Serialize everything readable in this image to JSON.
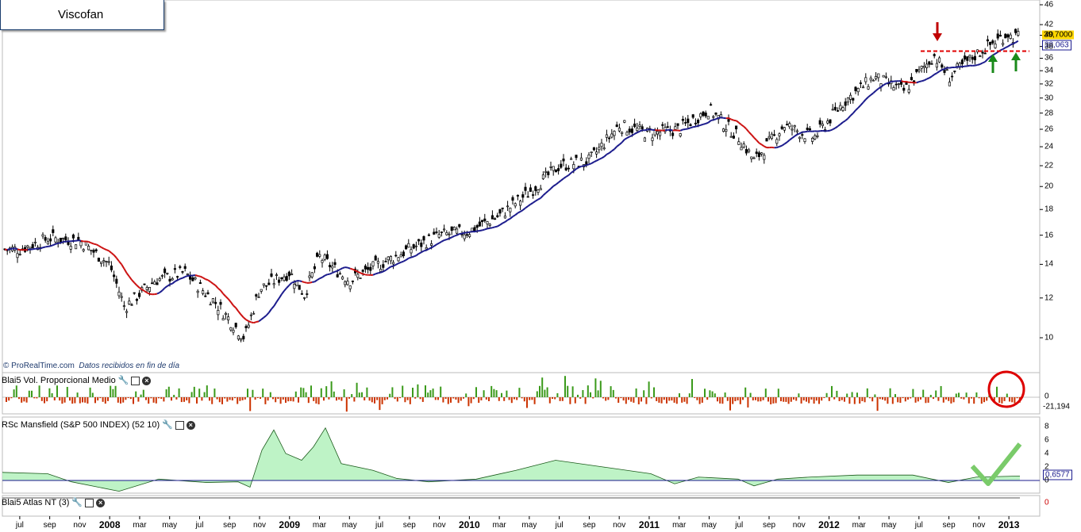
{
  "title": "Viscofan",
  "watermark": {
    "brand": "© ProRealTime.com",
    "note": "Datos recibidos en fin de día"
  },
  "price_tags": {
    "last": "39,7000",
    "ma": "38,063"
  },
  "indicators": {
    "volume": {
      "label": "Blai5 Vol. Proporcional Medio",
      "zero": "0",
      "value": "-21,194"
    },
    "rsc": {
      "label": "RSc Mansfield (S&P 500 INDEX) (52 10)",
      "value": "0,6577"
    },
    "atlas": {
      "label": "Blai5 Atlas NT (3)",
      "zero": "0"
    }
  },
  "icons": [
    "wrench-icon",
    "window-icon",
    "close-icon"
  ],
  "colors": {
    "candle": "#000000",
    "ma_up": "#1a1a8c",
    "ma_down": "#cc1111",
    "vol_up": "#3a9a1a",
    "vol_down": "#cc3300",
    "rsc_pos": "#aef0b8",
    "rsc_neg": "#f2b8c0",
    "arrow_red": "#c00000",
    "arrow_green": "#1a8a1a",
    "resistance": "#e00000"
  },
  "chart_data": {
    "type": "candlestick",
    "scale": "log",
    "ylim": [
      9,
      46
    ],
    "yticks": [
      46,
      42,
      40,
      38,
      36,
      34,
      32,
      30,
      28,
      26,
      24,
      22,
      20,
      18,
      16,
      14,
      12,
      10
    ],
    "x_tick_labels": [
      "jul",
      "sep",
      "nov",
      "2008",
      "mar",
      "may",
      "jul",
      "sep",
      "nov",
      "2009",
      "mar",
      "may",
      "jul",
      "sep",
      "nov",
      "2010",
      "mar",
      "may",
      "jul",
      "sep",
      "nov",
      "2011",
      "mar",
      "may",
      "jul",
      "sep",
      "nov",
      "2012",
      "mar",
      "may",
      "jul",
      "sep",
      "nov",
      "2013"
    ],
    "price_path": [
      [
        "2007-07",
        15.0
      ],
      [
        "2007-09",
        15.8
      ],
      [
        "2007-11",
        15.6
      ],
      [
        "2008-01",
        14.0
      ],
      [
        "2008-02",
        11.5
      ],
      [
        "2008-04",
        13.0
      ],
      [
        "2008-06",
        13.5
      ],
      [
        "2008-08",
        11.8
      ],
      [
        "2008-10",
        10.0
      ],
      [
        "2008-11",
        12.5
      ],
      [
        "2009-01",
        13.5
      ],
      [
        "2009-02",
        12.2
      ],
      [
        "2009-03",
        14.5
      ],
      [
        "2009-05",
        13.0
      ],
      [
        "2009-07",
        14.0
      ],
      [
        "2009-09",
        15.0
      ],
      [
        "2009-11",
        16.0
      ],
      [
        "2010-01",
        16.3
      ],
      [
        "2010-03",
        17.5
      ],
      [
        "2010-05",
        19.5
      ],
      [
        "2010-07",
        22.0
      ],
      [
        "2010-09",
        22.5
      ],
      [
        "2010-11",
        26.5
      ],
      [
        "2011-01",
        25.5
      ],
      [
        "2011-03",
        26.0
      ],
      [
        "2011-05",
        28.5
      ],
      [
        "2011-07",
        25.0
      ],
      [
        "2011-08",
        22.5
      ],
      [
        "2011-10",
        26.5
      ],
      [
        "2011-12",
        25.0
      ],
      [
        "2012-02",
        29.5
      ],
      [
        "2012-04",
        33.0
      ],
      [
        "2012-06",
        31.0
      ],
      [
        "2012-08",
        36.5
      ],
      [
        "2012-09",
        33.0
      ],
      [
        "2012-11",
        37.0
      ],
      [
        "2013-01",
        40.5
      ],
      [
        "2013-01",
        39.7
      ]
    ],
    "series": [
      {
        "name": "MA",
        "last": 38.063
      },
      {
        "name": "RSc Mansfield",
        "last": 0.6577,
        "ylim": [
          -1,
          8
        ],
        "yticks": [
          8,
          6,
          4,
          2,
          0
        ]
      }
    ],
    "annotations": [
      "resistance line ~37.2",
      "red down arrow at breakout",
      "two green up arrows on retests",
      "green checkmark on RSc",
      "red circle on volume"
    ]
  }
}
